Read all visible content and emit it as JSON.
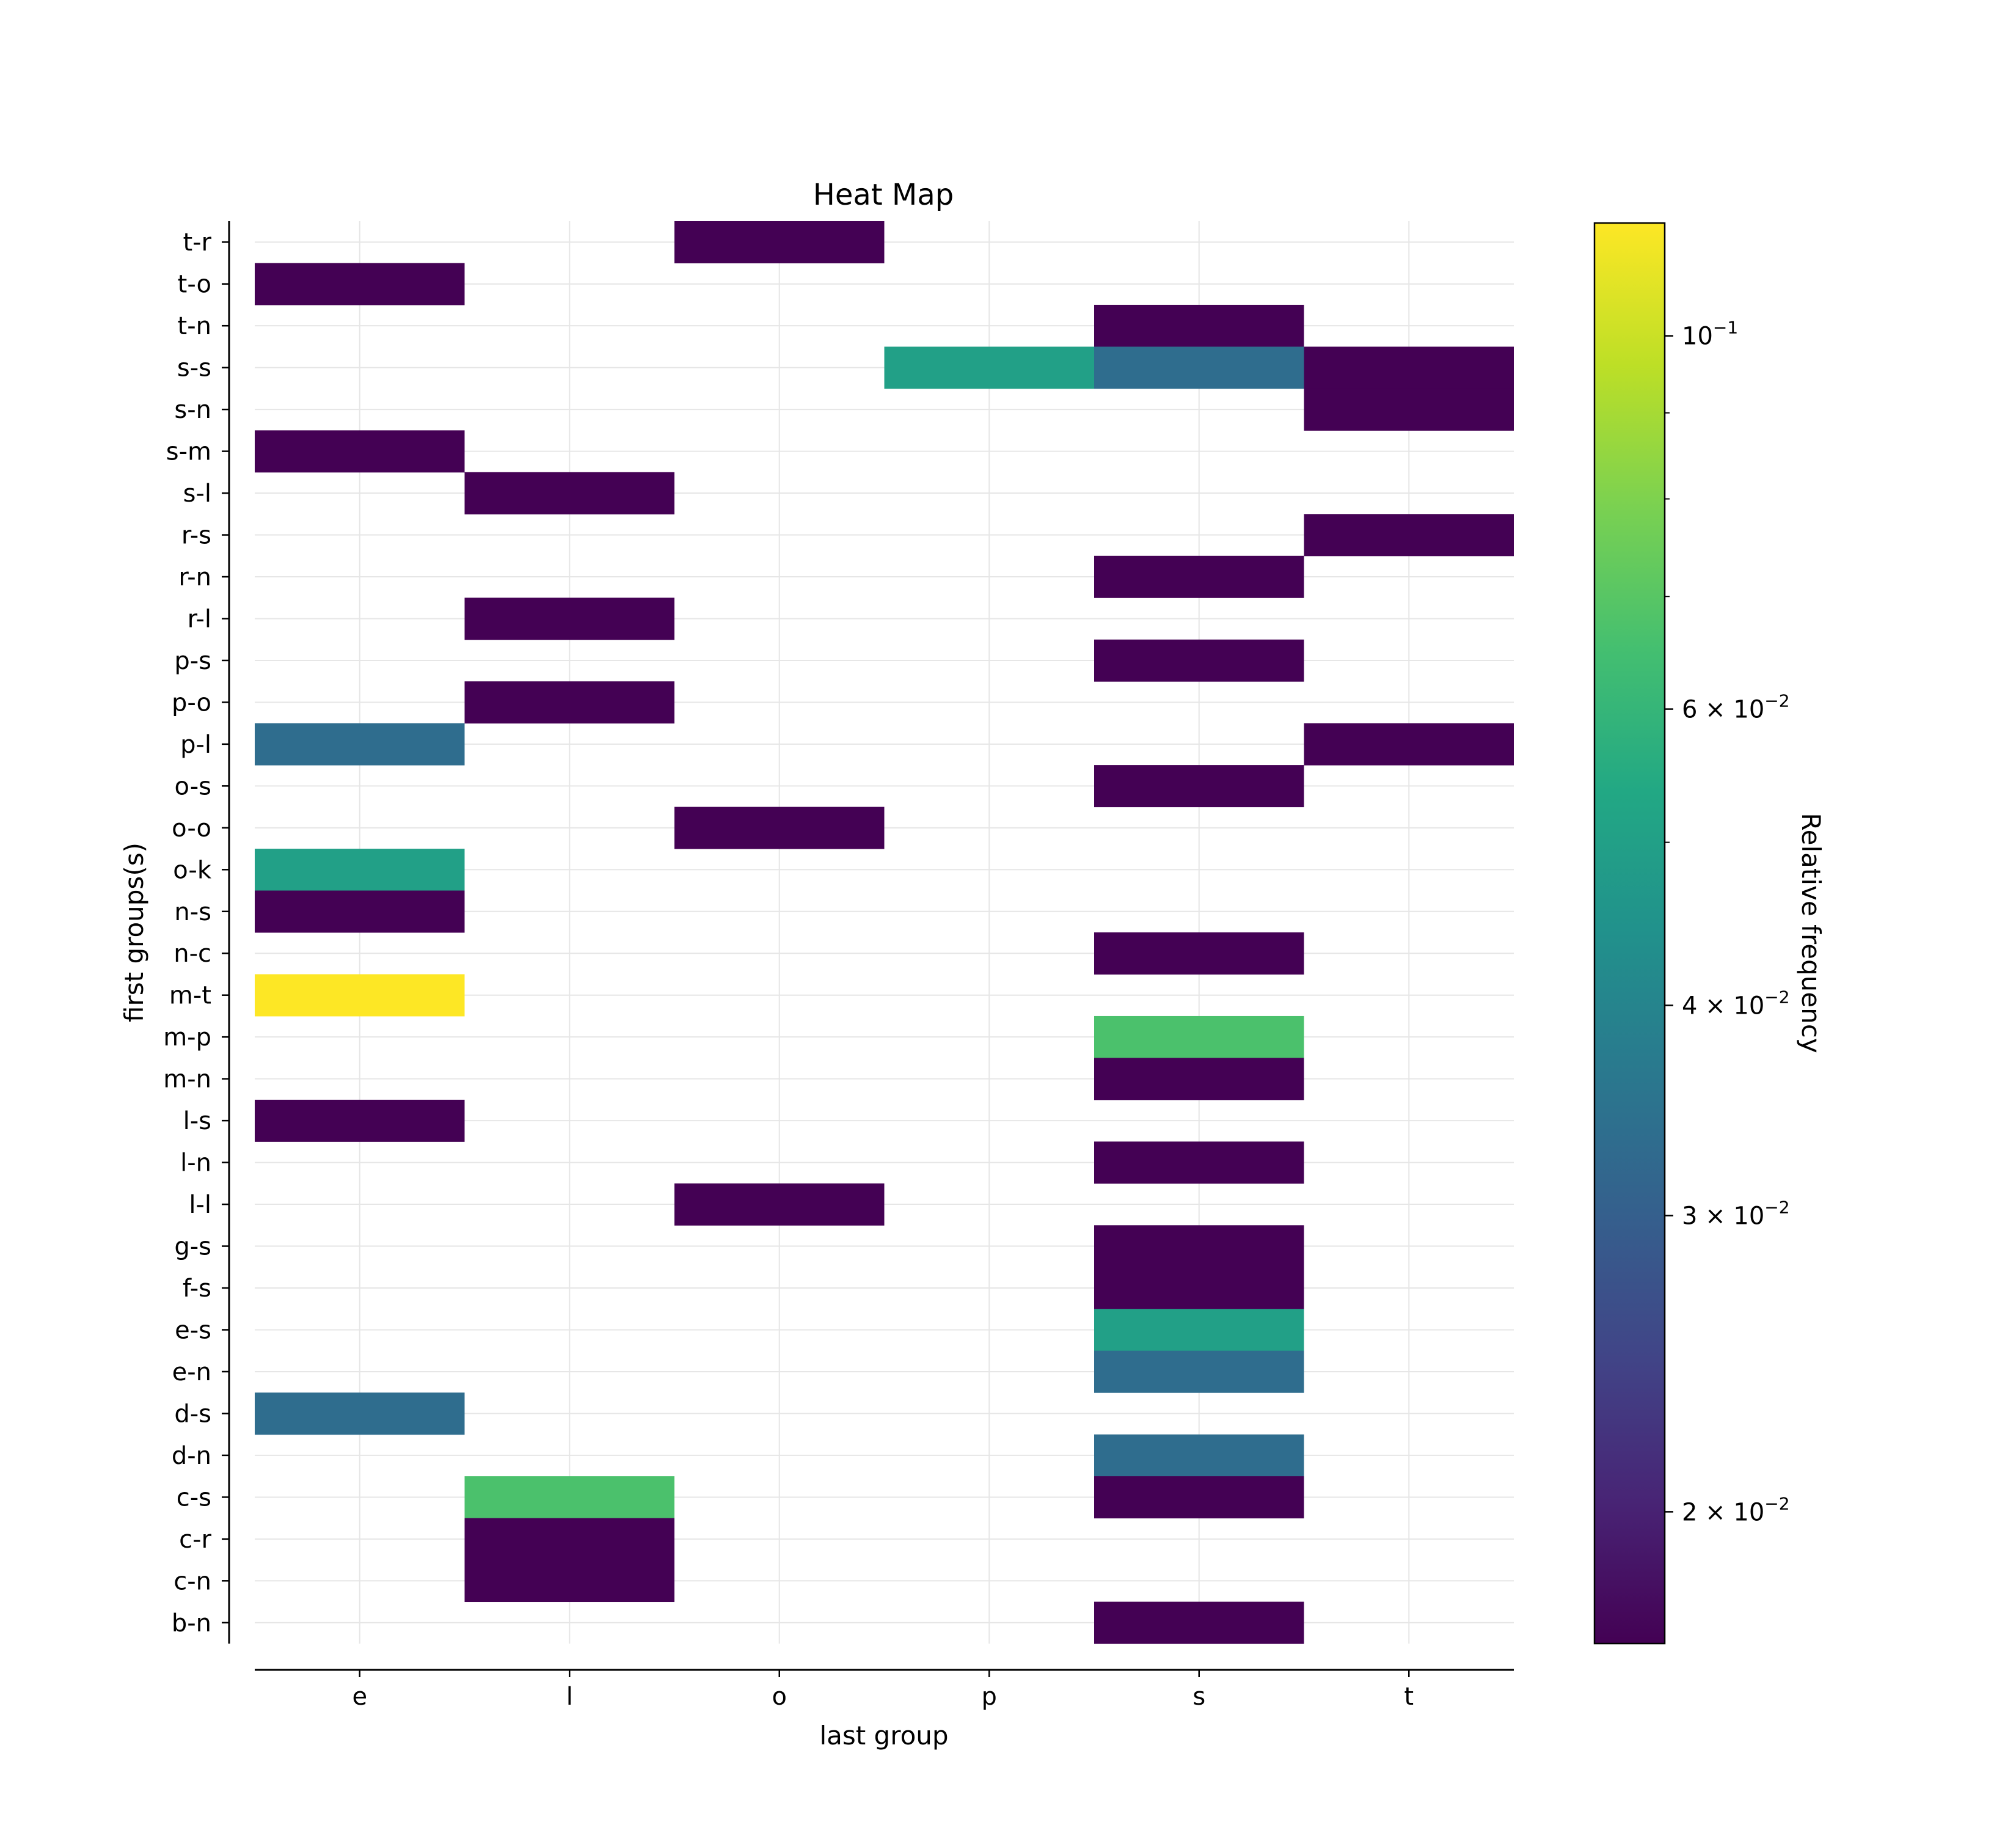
{
  "chart_data": {
    "type": "heatmap",
    "title": "Heat Map",
    "xlabel": "last group",
    "ylabel": "first groups(s)",
    "x_categories": [
      "e",
      "l",
      "o",
      "p",
      "s",
      "t"
    ],
    "y_categories": [
      "t-r",
      "t-o",
      "t-n",
      "s-s",
      "s-n",
      "s-m",
      "s-l",
      "r-s",
      "r-n",
      "r-l",
      "p-s",
      "p-o",
      "p-l",
      "o-s",
      "o-o",
      "o-k",
      "n-s",
      "n-c",
      "m-t",
      "m-p",
      "m-n",
      "l-s",
      "l-n",
      "l-l",
      "g-s",
      "f-s",
      "e-s",
      "e-n",
      "d-s",
      "d-n",
      "c-s",
      "c-r",
      "c-n",
      "b-n"
    ],
    "cells": [
      {
        "y": "t-r",
        "x": "o",
        "value": 0.0167
      },
      {
        "y": "t-o",
        "x": "e",
        "value": 0.0167
      },
      {
        "y": "t-n",
        "x": "s",
        "value": 0.0167
      },
      {
        "y": "s-s",
        "x": "p",
        "value": 0.05
      },
      {
        "y": "s-s",
        "x": "s",
        "value": 0.0333
      },
      {
        "y": "s-s",
        "x": "t",
        "value": 0.0167
      },
      {
        "y": "s-n",
        "x": "t",
        "value": 0.0167
      },
      {
        "y": "s-m",
        "x": "e",
        "value": 0.0167
      },
      {
        "y": "s-l",
        "x": "l",
        "value": 0.0167
      },
      {
        "y": "r-s",
        "x": "t",
        "value": 0.0167
      },
      {
        "y": "r-n",
        "x": "s",
        "value": 0.0167
      },
      {
        "y": "r-l",
        "x": "l",
        "value": 0.0167
      },
      {
        "y": "p-s",
        "x": "s",
        "value": 0.0167
      },
      {
        "y": "p-o",
        "x": "l",
        "value": 0.0167
      },
      {
        "y": "p-l",
        "x": "e",
        "value": 0.0333
      },
      {
        "y": "p-l",
        "x": "t",
        "value": 0.0167
      },
      {
        "y": "o-s",
        "x": "s",
        "value": 0.0167
      },
      {
        "y": "o-o",
        "x": "o",
        "value": 0.0167
      },
      {
        "y": "o-k",
        "x": "e",
        "value": 0.05
      },
      {
        "y": "n-s",
        "x": "e",
        "value": 0.0167
      },
      {
        "y": "n-c",
        "x": "s",
        "value": 0.0167
      },
      {
        "y": "m-t",
        "x": "e",
        "value": 0.1167
      },
      {
        "y": "m-p",
        "x": "s",
        "value": 0.0667
      },
      {
        "y": "m-n",
        "x": "s",
        "value": 0.0167
      },
      {
        "y": "l-s",
        "x": "e",
        "value": 0.0167
      },
      {
        "y": "l-n",
        "x": "s",
        "value": 0.0167
      },
      {
        "y": "l-l",
        "x": "o",
        "value": 0.0167
      },
      {
        "y": "g-s",
        "x": "s",
        "value": 0.0167
      },
      {
        "y": "f-s",
        "x": "s",
        "value": 0.0167
      },
      {
        "y": "e-s",
        "x": "s",
        "value": 0.05
      },
      {
        "y": "e-n",
        "x": "s",
        "value": 0.0333
      },
      {
        "y": "d-s",
        "x": "e",
        "value": 0.0333
      },
      {
        "y": "d-n",
        "x": "s",
        "value": 0.0333
      },
      {
        "y": "c-s",
        "x": "l",
        "value": 0.0667
      },
      {
        "y": "c-s",
        "x": "s",
        "value": 0.0167
      },
      {
        "y": "c-r",
        "x": "l",
        "value": 0.0167
      },
      {
        "y": "c-n",
        "x": "l",
        "value": 0.0167
      },
      {
        "y": "b-n",
        "x": "s",
        "value": 0.0167
      }
    ],
    "colorbar": {
      "label": "Relative frequency",
      "scale": "log",
      "colormap": "viridis",
      "range": [
        0.0167,
        0.1167
      ],
      "ticks": [
        {
          "value": 0.02,
          "mantissa": "2",
          "exponent": "−2"
        },
        {
          "value": 0.03,
          "mantissa": "3",
          "exponent": "−2"
        },
        {
          "value": 0.04,
          "mantissa": "4",
          "exponent": "−2"
        },
        {
          "value": 0.06,
          "mantissa": "6",
          "exponent": "−2"
        },
        {
          "value": 0.1,
          "mantissa": "",
          "exponent": "−1"
        }
      ],
      "minor_ticks": [
        0.05,
        0.07,
        0.08,
        0.09
      ]
    },
    "grid": true,
    "legend": "none"
  }
}
